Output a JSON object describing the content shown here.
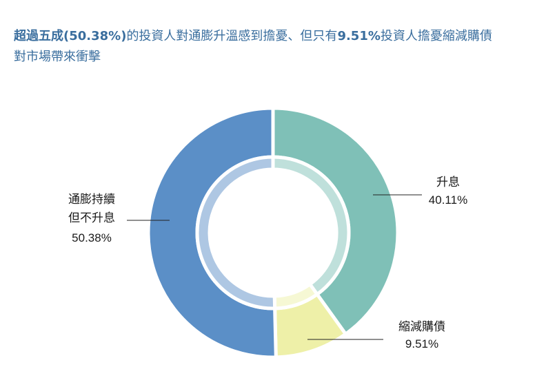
{
  "title": {
    "line1_bold_a": "超過五成(50.38%)",
    "line1_a": "的投資人對通膨升溫感到擔憂、但只有",
    "line1_bold_b": "9.51%",
    "line1_b": "投資人擔憂縮減購債",
    "line2": "對市場帶來衝擊"
  },
  "chart_data": {
    "type": "pie",
    "style": "donut",
    "slices": [
      {
        "label_lines": [
          "升息"
        ],
        "value_label": "40.11%",
        "value": 40.11,
        "color": "#7fc0b7",
        "inner_color": "#bfe0db"
      },
      {
        "label_lines": [
          "縮減購債"
        ],
        "value_label": "9.51%",
        "value": 9.51,
        "color": "#eef0a8",
        "inner_color": "#f6f8d4"
      },
      {
        "label_lines": [
          "通膨持續",
          "但不升息"
        ],
        "value_label": "50.38%",
        "value": 50.38,
        "color": "#5b8fc7",
        "inner_color": "#aec7e3"
      }
    ]
  }
}
